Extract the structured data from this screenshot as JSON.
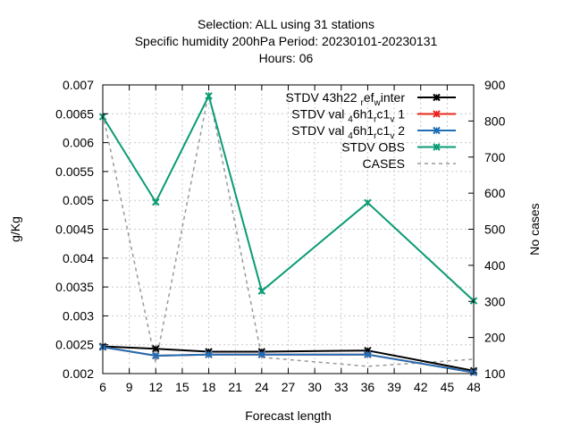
{
  "chart_data": {
    "type": "line",
    "title_lines": [
      "Selection: ALL using    31 stations",
      "Specific humidity 200hPa   Period: 20230101-20230131",
      "Hours:  06"
    ],
    "xlabel": "Forecast length",
    "ylabel": "g/Kg",
    "y2label": "No cases",
    "x": [
      6,
      12,
      18,
      24,
      36,
      48
    ],
    "xlim": [
      6,
      48
    ],
    "xticks": [
      6,
      9,
      12,
      15,
      18,
      21,
      24,
      27,
      30,
      33,
      36,
      39,
      42,
      45,
      48
    ],
    "ylim": [
      0.002,
      0.007
    ],
    "yticks": [
      "0.002",
      "0.0025",
      "0.003",
      "0.0035",
      "0.004",
      "0.0045",
      "0.005",
      "0.0055",
      "0.006",
      "0.0065",
      "0.007"
    ],
    "y2lim": [
      100,
      900
    ],
    "y2ticks": [
      100,
      200,
      300,
      400,
      500,
      600,
      700,
      800,
      900
    ],
    "grid": true,
    "legend_position": "top-right",
    "series": [
      {
        "name": "STDV 43h22_r ef_w inter",
        "legend": {
          "base": "STDV 43h22",
          "sub1": "r",
          "mid": "ef",
          "sub2": "w",
          "tail": "inter"
        },
        "color": "#000000",
        "marker": "x",
        "axis": "y",
        "values": [
          0.00247,
          0.00243,
          0.00238,
          0.00238,
          0.0024,
          0.00205
        ]
      },
      {
        "name": "STDV val_4 6h1_r c1_v 1",
        "legend": {
          "base": "STDV val",
          "sub1": "4",
          "mid": "6h1",
          "sub2": "r",
          "mid2": "c1",
          "sub3": "v",
          "tail": "1"
        },
        "color": "#e8261c",
        "marker": "x",
        "axis": "y",
        "values": [
          0.00246,
          0.00231,
          0.00233,
          0.00233,
          0.00233,
          0.00202
        ]
      },
      {
        "name": "STDV val_4 6h1_r c1_v 2",
        "legend": {
          "base": "STDV val",
          "sub1": "4",
          "mid": "6h1",
          "sub2": "r",
          "mid2": "c1",
          "sub3": "v",
          "tail": "2"
        },
        "color": "#1f6fb5",
        "marker": "x",
        "axis": "y",
        "values": [
          0.00246,
          0.00231,
          0.00233,
          0.00233,
          0.00233,
          0.00202
        ]
      },
      {
        "name": "STDV OBS",
        "color": "#0a9b74",
        "marker": "x",
        "axis": "y",
        "values": [
          0.00645,
          0.00497,
          0.00681,
          0.00343,
          0.00496,
          0.00326
        ]
      },
      {
        "name": "CASES",
        "color": "#999999",
        "dashed": true,
        "axis": "y2",
        "values": [
          820,
          130,
          880,
          145,
          120,
          140
        ]
      }
    ]
  }
}
